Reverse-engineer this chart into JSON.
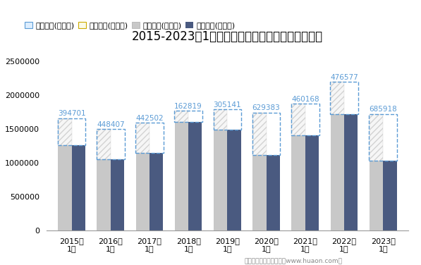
{
  "title": "2015-2023年1月江苏省外商投资企业进出口差额图",
  "categories": [
    "2015年\n1月",
    "2016年\n1月",
    "2017年\n1月",
    "2018年\n1月",
    "2019年\n1月",
    "2020年\n1月",
    "2021年\n1月",
    "2022年\n1月",
    "2023年\n1月"
  ],
  "export_total": [
    1660000,
    1500000,
    1590000,
    1770000,
    1790000,
    1740000,
    1870000,
    2195000,
    1720000
  ],
  "import_total": [
    1265000,
    1052000,
    1148000,
    1607000,
    1485000,
    1111000,
    1410000,
    1718000,
    1034000
  ],
  "surplus_values": [
    394701,
    448407,
    442502,
    162819,
    305141,
    629383,
    460168,
    476577,
    685918
  ],
  "footnote": "制图：华经产业研究院（www.huaon.com）",
  "legend_labels": [
    "贸易顺差(万美元)",
    "贸易逆差(万美元)",
    "出口总额(万美元)",
    "进口总额(万美元)"
  ],
  "color_export": "#c8c8c8",
  "color_import": "#4a5a80",
  "color_text_surplus": "#5b9bd5",
  "ylim": [
    0,
    2700000
  ],
  "yticks": [
    0,
    500000,
    1000000,
    1500000,
    2000000,
    2500000
  ],
  "bar_width": 0.35,
  "title_fontsize": 12,
  "tick_fontsize": 8,
  "legend_fontsize": 8,
  "annotation_fontsize": 7.5
}
